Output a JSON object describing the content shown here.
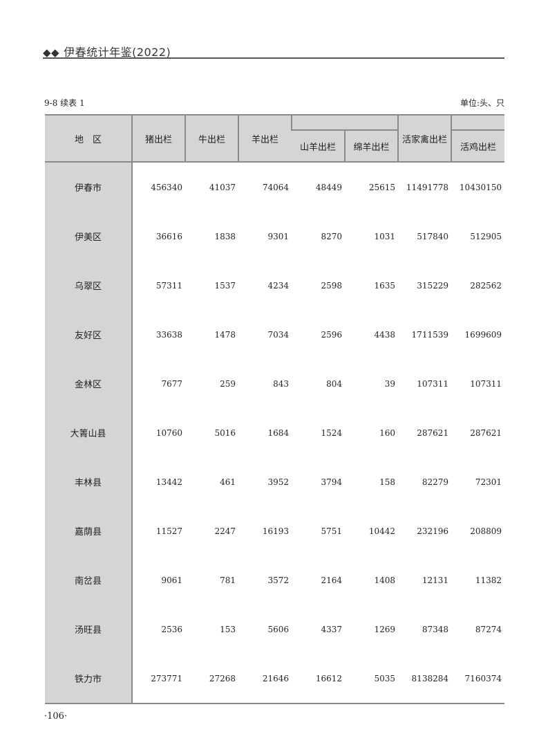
{
  "running_head": {
    "marker": "◆◆",
    "title": "伊春统计年鉴(2022)"
  },
  "caption": {
    "table_id": "9-8 续表 1",
    "unit": "单位:头、只"
  },
  "table": {
    "headers": {
      "region": "地　区",
      "pig": "猪出栏",
      "cattle": "牛出栏",
      "sheep_goat": "羊出栏",
      "goat": "山羊出栏",
      "sheep": "绵羊出栏",
      "poultry": "活家禽出栏",
      "chicken": "活鸡出栏"
    },
    "rows": [
      {
        "region": "伊春市",
        "values": [
          "456340",
          "41037",
          "74064",
          "48449",
          "25615",
          "11491778",
          "10430150"
        ]
      },
      {
        "region": "伊美区",
        "values": [
          "36616",
          "1838",
          "9301",
          "8270",
          "1031",
          "517840",
          "512905"
        ]
      },
      {
        "region": "乌翠区",
        "values": [
          "57311",
          "1537",
          "4234",
          "2598",
          "1635",
          "315229",
          "282562"
        ]
      },
      {
        "region": "友好区",
        "values": [
          "33638",
          "1478",
          "7034",
          "2596",
          "4438",
          "1711539",
          "1699609"
        ]
      },
      {
        "region": "金林区",
        "values": [
          "7677",
          "259",
          "843",
          "804",
          "39",
          "107311",
          "107311"
        ]
      },
      {
        "region": "大箐山县",
        "values": [
          "10760",
          "5016",
          "1684",
          "1524",
          "160",
          "287621",
          "287621"
        ]
      },
      {
        "region": "丰林县",
        "values": [
          "13442",
          "461",
          "3952",
          "3794",
          "158",
          "82279",
          "72301"
        ]
      },
      {
        "region": "嘉荫县",
        "values": [
          "11527",
          "2247",
          "16193",
          "5751",
          "10442",
          "232196",
          "208809"
        ]
      },
      {
        "region": "南岔县",
        "values": [
          "9061",
          "781",
          "3572",
          "2164",
          "1408",
          "12131",
          "11382"
        ]
      },
      {
        "region": "汤旺县",
        "values": [
          "2536",
          "153",
          "5606",
          "4337",
          "1269",
          "87348",
          "87274"
        ]
      },
      {
        "region": "铁力市",
        "values": [
          "273771",
          "27268",
          "21646",
          "16612",
          "5035",
          "8138284",
          "7160374"
        ]
      }
    ]
  },
  "folio": "·106·"
}
